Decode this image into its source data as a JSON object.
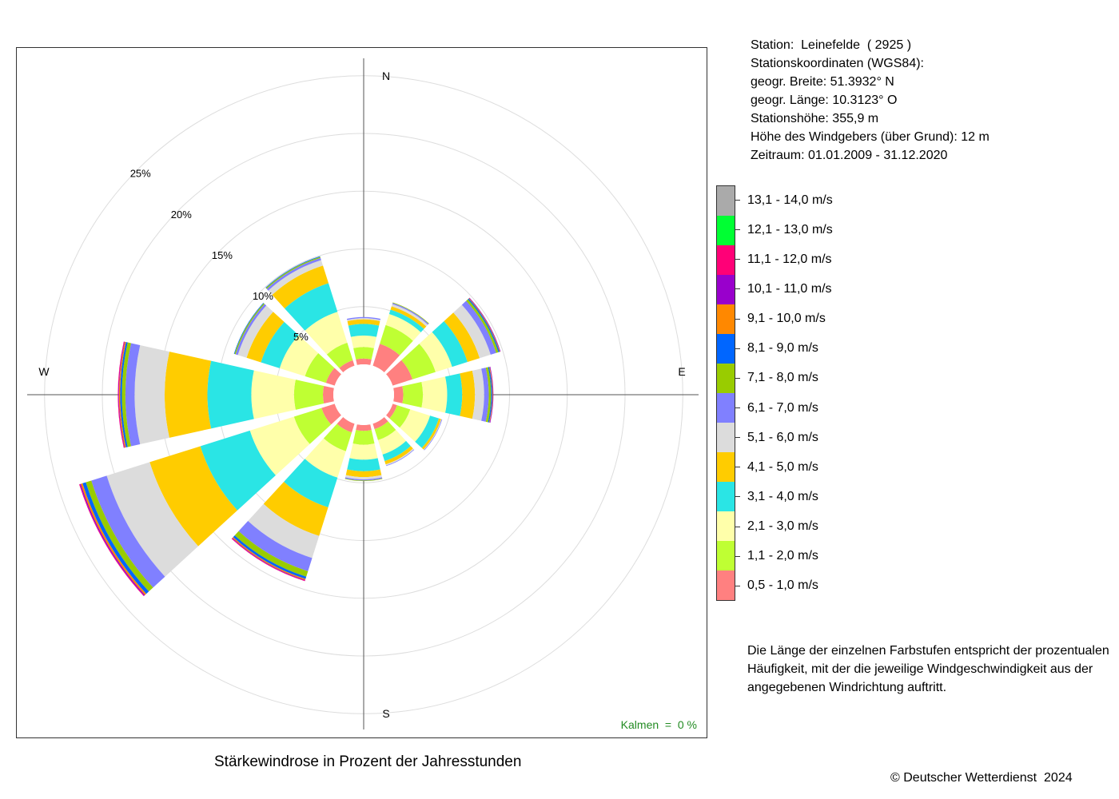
{
  "caption": "Stärkewindrose in Prozent der Jahresstunden",
  "copyright": "© Deutscher Wetterdienst  2024",
  "calm_text": "Kalmen  =  0 %",
  "station_info": [
    "Station:  Leinefelde  ( 2925 )",
    "Stationskoordinaten (WGS84):",
    "geogr. Breite: 51.3932° N",
    "geogr. Länge: 10.3123° O",
    "Stationshöhe: 355,9 m",
    "Höhe des Windgebers (über Grund): 12 m",
    "Zeitraum: 01.01.2009 - 31.12.2020"
  ],
  "note": "Die Länge der einzelnen Farbstufen entspricht der prozentualen Häufigkeit, mit der die jeweilige Windgeschwindigkeit aus der angegebenen Windrichtung auftritt.",
  "chart_data": {
    "type": "windrose",
    "unit": "%",
    "radius_max": 25,
    "rings": [
      5,
      10,
      15,
      20,
      25
    ],
    "ring_labels": [
      "5%",
      "10%",
      "15%",
      "20%",
      "25%"
    ],
    "calm_offset": 1.5,
    "compass": {
      "N": "N",
      "E": "E",
      "S": "S",
      "W": "W"
    },
    "direction_angles": [
      0,
      30,
      60,
      90,
      120,
      150,
      180,
      210,
      240,
      270,
      300,
      330
    ],
    "speed_classes": [
      {
        "label": "0,5 - 1,0 m/s",
        "color": "#FF8080"
      },
      {
        "label": "1,1 - 2,0 m/s",
        "color": "#BFFF33"
      },
      {
        "label": "2,1 - 3,0 m/s",
        "color": "#FFFFAA"
      },
      {
        "label": "3,1 - 4,0 m/s",
        "color": "#2AE5E5"
      },
      {
        "label": "4,1 - 5,0 m/s",
        "color": "#FFCC00"
      },
      {
        "label": "5,1 - 6,0 m/s",
        "color": "#DCDCDC"
      },
      {
        "label": "6,1 - 7,0 m/s",
        "color": "#8080FF"
      },
      {
        "label": "7,1 - 8,0 m/s",
        "color": "#99CC00"
      },
      {
        "label": "8,1 - 9,0 m/s",
        "color": "#0066FF"
      },
      {
        "label": "9,1 - 10,0 m/s",
        "color": "#FF8800"
      },
      {
        "label": "10,1 - 11,0 m/s",
        "color": "#9900CC"
      },
      {
        "label": "11,1 - 12,0 m/s",
        "color": "#FF0077"
      },
      {
        "label": "12,1 - 13,0 m/s",
        "color": "#00FF33"
      },
      {
        "label": "13,1 - 14,0 m/s",
        "color": "#AAAAAA"
      }
    ],
    "directions": [
      {
        "angle": 0,
        "values": [
          0.5,
          1.0,
          1.0,
          1.0,
          0.4,
          0.1,
          0.1,
          0,
          0,
          0,
          0,
          0,
          0,
          0
        ]
      },
      {
        "angle": 30,
        "values": [
          2.0,
          1.7,
          1.0,
          0.4,
          0.3,
          0.2,
          0.1,
          0.05,
          0,
          0,
          0,
          0,
          0,
          0
        ]
      },
      {
        "angle": 60,
        "values": [
          1.8,
          2.1,
          1.5,
          1.4,
          1.1,
          1.0,
          0.5,
          0.2,
          0.1,
          0.05,
          0.05,
          0,
          0,
          0
        ]
      },
      {
        "angle": 90,
        "values": [
          0.8,
          1.7,
          2.1,
          1.3,
          1.1,
          0.8,
          0.4,
          0.2,
          0.1,
          0.05,
          0.05,
          0,
          0,
          0
        ]
      },
      {
        "angle": 120,
        "values": [
          0.4,
          1.2,
          1.8,
          0.8,
          0.2,
          0.05,
          0.05,
          0,
          0,
          0,
          0,
          0,
          0,
          0
        ]
      },
      {
        "angle": 150,
        "values": [
          0.5,
          1.0,
          1.3,
          0.6,
          0.3,
          0.1,
          0.05,
          0,
          0,
          0,
          0,
          0,
          0,
          0
        ]
      },
      {
        "angle": 180,
        "values": [
          0.5,
          1.2,
          1.3,
          1.0,
          0.5,
          0.2,
          0.1,
          0.05,
          0,
          0,
          0,
          0,
          0,
          0
        ]
      },
      {
        "angle": 210,
        "values": [
          0.8,
          1.7,
          2.4,
          2.7,
          2.6,
          2.0,
          1.2,
          0.5,
          0.2,
          0.1,
          0.05,
          0.05,
          0,
          0
        ]
      },
      {
        "angle": 240,
        "values": [
          1.2,
          2.5,
          4.0,
          4.5,
          4.6,
          3.9,
          1.4,
          0.5,
          0.3,
          0.15,
          0.1,
          0.05,
          0,
          0
        ]
      },
      {
        "angle": 270,
        "values": [
          0.9,
          2.5,
          3.7,
          3.8,
          3.7,
          2.6,
          0.8,
          0.3,
          0.15,
          0.1,
          0.05,
          0.05,
          0,
          0
        ]
      },
      {
        "angle": 300,
        "values": [
          0.8,
          1.9,
          2.3,
          1.7,
          1.3,
          0.8,
          0.2,
          0.1,
          0.05,
          0,
          0,
          0,
          0,
          0
        ]
      },
      {
        "angle": 330,
        "values": [
          0.5,
          1.6,
          2.8,
          2.6,
          1.6,
          0.5,
          0.2,
          0.1,
          0.05,
          0,
          0,
          0,
          0,
          0
        ]
      }
    ]
  }
}
